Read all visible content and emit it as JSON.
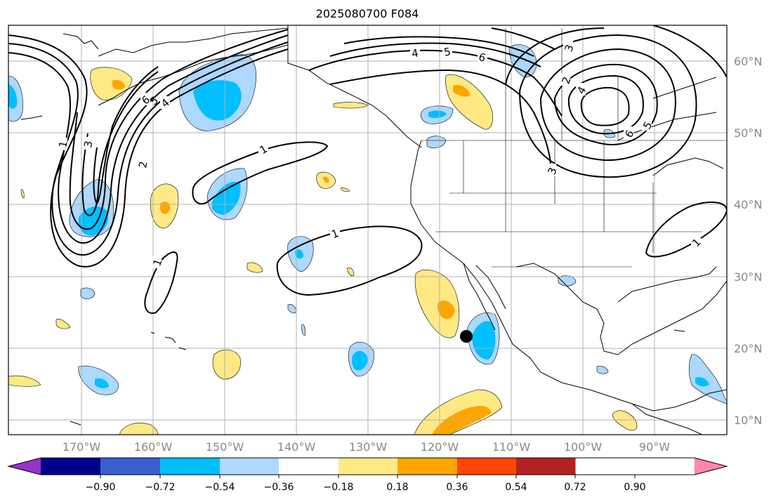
{
  "title": "2025080700 F084",
  "latitude_labels": [
    "60°N",
    "50°N",
    "40°N",
    "30°N",
    "20°N",
    "10°N"
  ],
  "longitude_labels": [
    "170°W",
    "160°W",
    "150°W",
    "140°W",
    "130°W",
    "120°W",
    "110°W",
    "100°W",
    "90°W"
  ],
  "colorbar": {
    "colors": [
      "#9932cc",
      "#00008b",
      "#3a5fcd",
      "#00bfff",
      "#add8ff",
      "#ffffff",
      "#ffe985",
      "#ffa500",
      "#ff4500",
      "#b22222",
      "#ff88aa"
    ],
    "tick_labels": [
      "−0.90",
      "−0.72",
      "−0.54",
      "−0.36",
      "−0.18",
      "0.18",
      "0.36",
      "0.54",
      "0.72",
      "0.90"
    ]
  },
  "contour_labels": [
    "1",
    "1",
    "1",
    "1",
    "2",
    "3",
    "4",
    "5",
    "6",
    "4",
    "5",
    "6",
    "2",
    "3",
    "4",
    "5",
    "6",
    "3",
    "1"
  ],
  "colors": {
    "grid": "#b0b0b0",
    "coast": "#000000",
    "contour": "#000000",
    "marker": "#000000",
    "axis_text": "#888888"
  }
}
